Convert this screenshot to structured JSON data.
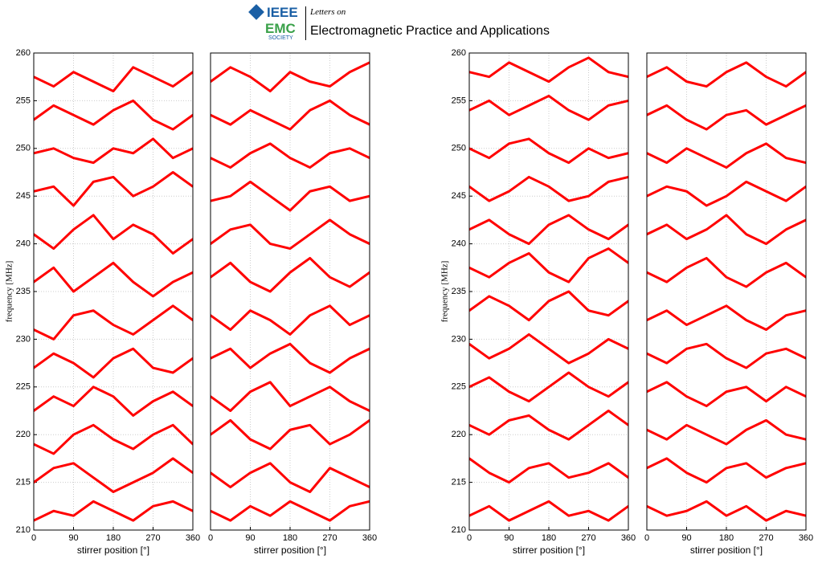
{
  "header": {
    "ieee": "IEEE",
    "emc": "EMC",
    "society": "SOCIETY",
    "letters": "Letters on",
    "journal": "Electromagnetic Practice and  Applications"
  },
  "chart_data": [
    {
      "type": "line",
      "xlabel": "stirrer position [°]",
      "ylabel": "frequency [MHz]",
      "x": [
        0,
        45,
        90,
        135,
        180,
        225,
        270,
        315,
        360
      ],
      "xlim": [
        0,
        360
      ],
      "xticks": [
        0,
        90,
        180,
        270,
        360
      ],
      "ylim": [
        210,
        260
      ],
      "yticks": [
        210,
        215,
        220,
        225,
        230,
        235,
        240,
        245,
        250,
        255,
        260
      ],
      "grid": true,
      "series": [
        {
          "color": "#ff0000",
          "values": [
            211,
            212,
            211.5,
            213,
            212,
            211,
            212.5,
            213,
            212
          ]
        },
        {
          "color": "#ff0000",
          "values": [
            215,
            216.5,
            217,
            215.5,
            214,
            215,
            216,
            217.5,
            216
          ]
        },
        {
          "color": "#ff0000",
          "values": [
            219,
            218,
            220,
            221,
            219.5,
            218.5,
            220,
            221,
            219
          ]
        },
        {
          "color": "#ff0000",
          "values": [
            222.5,
            224,
            223,
            225,
            224,
            222,
            223.5,
            224.5,
            223
          ]
        },
        {
          "color": "#ff0000",
          "values": [
            227,
            228.5,
            227.5,
            226,
            228,
            229,
            227,
            226.5,
            228
          ]
        },
        {
          "color": "#ff0000",
          "values": [
            231,
            230,
            232.5,
            233,
            231.5,
            230.5,
            232,
            233.5,
            232
          ]
        },
        {
          "color": "#ff0000",
          "values": [
            236,
            237.5,
            235,
            236.5,
            238,
            236,
            234.5,
            236,
            237
          ]
        },
        {
          "color": "#ff0000",
          "values": [
            241,
            239.5,
            241.5,
            243,
            240.5,
            242,
            241,
            239,
            240.5
          ]
        },
        {
          "color": "#ff0000",
          "values": [
            245.5,
            246,
            244,
            246.5,
            247,
            245,
            246,
            247.5,
            246
          ]
        },
        {
          "color": "#ff0000",
          "values": [
            249.5,
            250,
            249,
            248.5,
            250,
            249.5,
            251,
            249,
            250
          ]
        },
        {
          "color": "#ff0000",
          "values": [
            253,
            254.5,
            253.5,
            252.5,
            254,
            255,
            253,
            252,
            253.5
          ]
        },
        {
          "color": "#ff0000",
          "values": [
            257.5,
            256.5,
            258,
            257,
            256,
            258.5,
            257.5,
            256.5,
            258
          ]
        }
      ]
    },
    {
      "type": "line",
      "xlabel": "stirrer position [°]",
      "x": [
        0,
        45,
        90,
        135,
        180,
        225,
        270,
        315,
        360
      ],
      "xlim": [
        0,
        360
      ],
      "xticks": [
        0,
        90,
        180,
        270,
        360
      ],
      "ylim": [
        210,
        260
      ],
      "grid": true,
      "series": [
        {
          "color": "#ff0000",
          "values": [
            212,
            211,
            212.5,
            211.5,
            213,
            212,
            211,
            212.5,
            213
          ]
        },
        {
          "color": "#ff0000",
          "values": [
            216,
            214.5,
            216,
            217,
            215,
            214,
            216.5,
            215.5,
            214.5
          ]
        },
        {
          "color": "#ff0000",
          "values": [
            220,
            221.5,
            219.5,
            218.5,
            220.5,
            221,
            219,
            220,
            221.5
          ]
        },
        {
          "color": "#ff0000",
          "values": [
            224,
            222.5,
            224.5,
            225.5,
            223,
            224,
            225,
            223.5,
            222.5
          ]
        },
        {
          "color": "#ff0000",
          "values": [
            228,
            229,
            227,
            228.5,
            229.5,
            227.5,
            226.5,
            228,
            229
          ]
        },
        {
          "color": "#ff0000",
          "values": [
            232.5,
            231,
            233,
            232,
            230.5,
            232.5,
            233.5,
            231.5,
            232.5
          ]
        },
        {
          "color": "#ff0000",
          "values": [
            236.5,
            238,
            236,
            235,
            237,
            238.5,
            236.5,
            235.5,
            237
          ]
        },
        {
          "color": "#ff0000",
          "values": [
            240,
            241.5,
            242,
            240,
            239.5,
            241,
            242.5,
            241,
            240
          ]
        },
        {
          "color": "#ff0000",
          "values": [
            244.5,
            245,
            246.5,
            245,
            243.5,
            245.5,
            246,
            244.5,
            245
          ]
        },
        {
          "color": "#ff0000",
          "values": [
            249,
            248,
            249.5,
            250.5,
            249,
            248,
            249.5,
            250,
            249
          ]
        },
        {
          "color": "#ff0000",
          "values": [
            253.5,
            252.5,
            254,
            253,
            252,
            254,
            255,
            253.5,
            252.5
          ]
        },
        {
          "color": "#ff0000",
          "values": [
            257,
            258.5,
            257.5,
            256,
            258,
            257,
            256.5,
            258,
            259
          ]
        }
      ]
    },
    {
      "type": "line",
      "xlabel": "stirrer position [°]",
      "ylabel": "frequency [MHz]",
      "x": [
        0,
        45,
        90,
        135,
        180,
        225,
        270,
        315,
        360
      ],
      "xlim": [
        0,
        360
      ],
      "xticks": [
        0,
        90,
        180,
        270,
        360
      ],
      "ylim": [
        210,
        260
      ],
      "yticks": [
        210,
        215,
        220,
        225,
        230,
        235,
        240,
        245,
        250,
        255,
        260
      ],
      "grid": true,
      "series": [
        {
          "color": "#ff0000",
          "values": [
            211.5,
            212.5,
            211,
            212,
            213,
            211.5,
            212,
            211,
            212.5
          ]
        },
        {
          "color": "#ff0000",
          "values": [
            217.5,
            216,
            215,
            216.5,
            217,
            215.5,
            216,
            217,
            215.5
          ]
        },
        {
          "color": "#ff0000",
          "values": [
            221,
            220,
            221.5,
            222,
            220.5,
            219.5,
            221,
            222.5,
            221
          ]
        },
        {
          "color": "#ff0000",
          "values": [
            225,
            226,
            224.5,
            223.5,
            225,
            226.5,
            225,
            224,
            225.5
          ]
        },
        {
          "color": "#ff0000",
          "values": [
            229.5,
            228,
            229,
            230.5,
            229,
            227.5,
            228.5,
            230,
            229
          ]
        },
        {
          "color": "#ff0000",
          "values": [
            233,
            234.5,
            233.5,
            232,
            234,
            235,
            233,
            232.5,
            234
          ]
        },
        {
          "color": "#ff0000",
          "values": [
            237.5,
            236.5,
            238,
            239,
            237,
            236,
            238.5,
            239.5,
            238
          ]
        },
        {
          "color": "#ff0000",
          "values": [
            241.5,
            242.5,
            241,
            240,
            242,
            243,
            241.5,
            240.5,
            242
          ]
        },
        {
          "color": "#ff0000",
          "values": [
            246,
            244.5,
            245.5,
            247,
            246,
            244.5,
            245,
            246.5,
            247
          ]
        },
        {
          "color": "#ff0000",
          "values": [
            250,
            249,
            250.5,
            251,
            249.5,
            248.5,
            250,
            249,
            249.5
          ]
        },
        {
          "color": "#ff0000",
          "values": [
            254,
            255,
            253.5,
            254.5,
            255.5,
            254,
            253,
            254.5,
            255
          ]
        },
        {
          "color": "#ff0000",
          "values": [
            258,
            257.5,
            259,
            258,
            257,
            258.5,
            259.5,
            258,
            257.5
          ]
        }
      ]
    },
    {
      "type": "line",
      "xlabel": "stirrer position [°]",
      "x": [
        0,
        45,
        90,
        135,
        180,
        225,
        270,
        315,
        360
      ],
      "xlim": [
        0,
        360
      ],
      "xticks": [
        0,
        90,
        180,
        270,
        360
      ],
      "ylim": [
        210,
        260
      ],
      "grid": true,
      "series": [
        {
          "color": "#ff0000",
          "values": [
            212.5,
            211.5,
            212,
            213,
            211.5,
            212.5,
            211,
            212,
            211.5
          ]
        },
        {
          "color": "#ff0000",
          "values": [
            216.5,
            217.5,
            216,
            215,
            216.5,
            217,
            215.5,
            216.5,
            217
          ]
        },
        {
          "color": "#ff0000",
          "values": [
            220.5,
            219.5,
            221,
            220,
            219,
            220.5,
            221.5,
            220,
            219.5
          ]
        },
        {
          "color": "#ff0000",
          "values": [
            224.5,
            225.5,
            224,
            223,
            224.5,
            225,
            223.5,
            225,
            224
          ]
        },
        {
          "color": "#ff0000",
          "values": [
            228.5,
            227.5,
            229,
            229.5,
            228,
            227,
            228.5,
            229,
            228
          ]
        },
        {
          "color": "#ff0000",
          "values": [
            232,
            233,
            231.5,
            232.5,
            233.5,
            232,
            231,
            232.5,
            233
          ]
        },
        {
          "color": "#ff0000",
          "values": [
            237,
            236,
            237.5,
            238.5,
            236.5,
            235.5,
            237,
            238,
            236.5
          ]
        },
        {
          "color": "#ff0000",
          "values": [
            241,
            242,
            240.5,
            241.5,
            243,
            241,
            240,
            241.5,
            242.5
          ]
        },
        {
          "color": "#ff0000",
          "values": [
            245,
            246,
            245.5,
            244,
            245,
            246.5,
            245.5,
            244.5,
            246
          ]
        },
        {
          "color": "#ff0000",
          "values": [
            249.5,
            248.5,
            250,
            249,
            248,
            249.5,
            250.5,
            249,
            248.5
          ]
        },
        {
          "color": "#ff0000",
          "values": [
            253.5,
            254.5,
            253,
            252,
            253.5,
            254,
            252.5,
            253.5,
            254.5
          ]
        },
        {
          "color": "#ff0000",
          "values": [
            257.5,
            258.5,
            257,
            256.5,
            258,
            259,
            257.5,
            256.5,
            258
          ]
        }
      ]
    }
  ]
}
